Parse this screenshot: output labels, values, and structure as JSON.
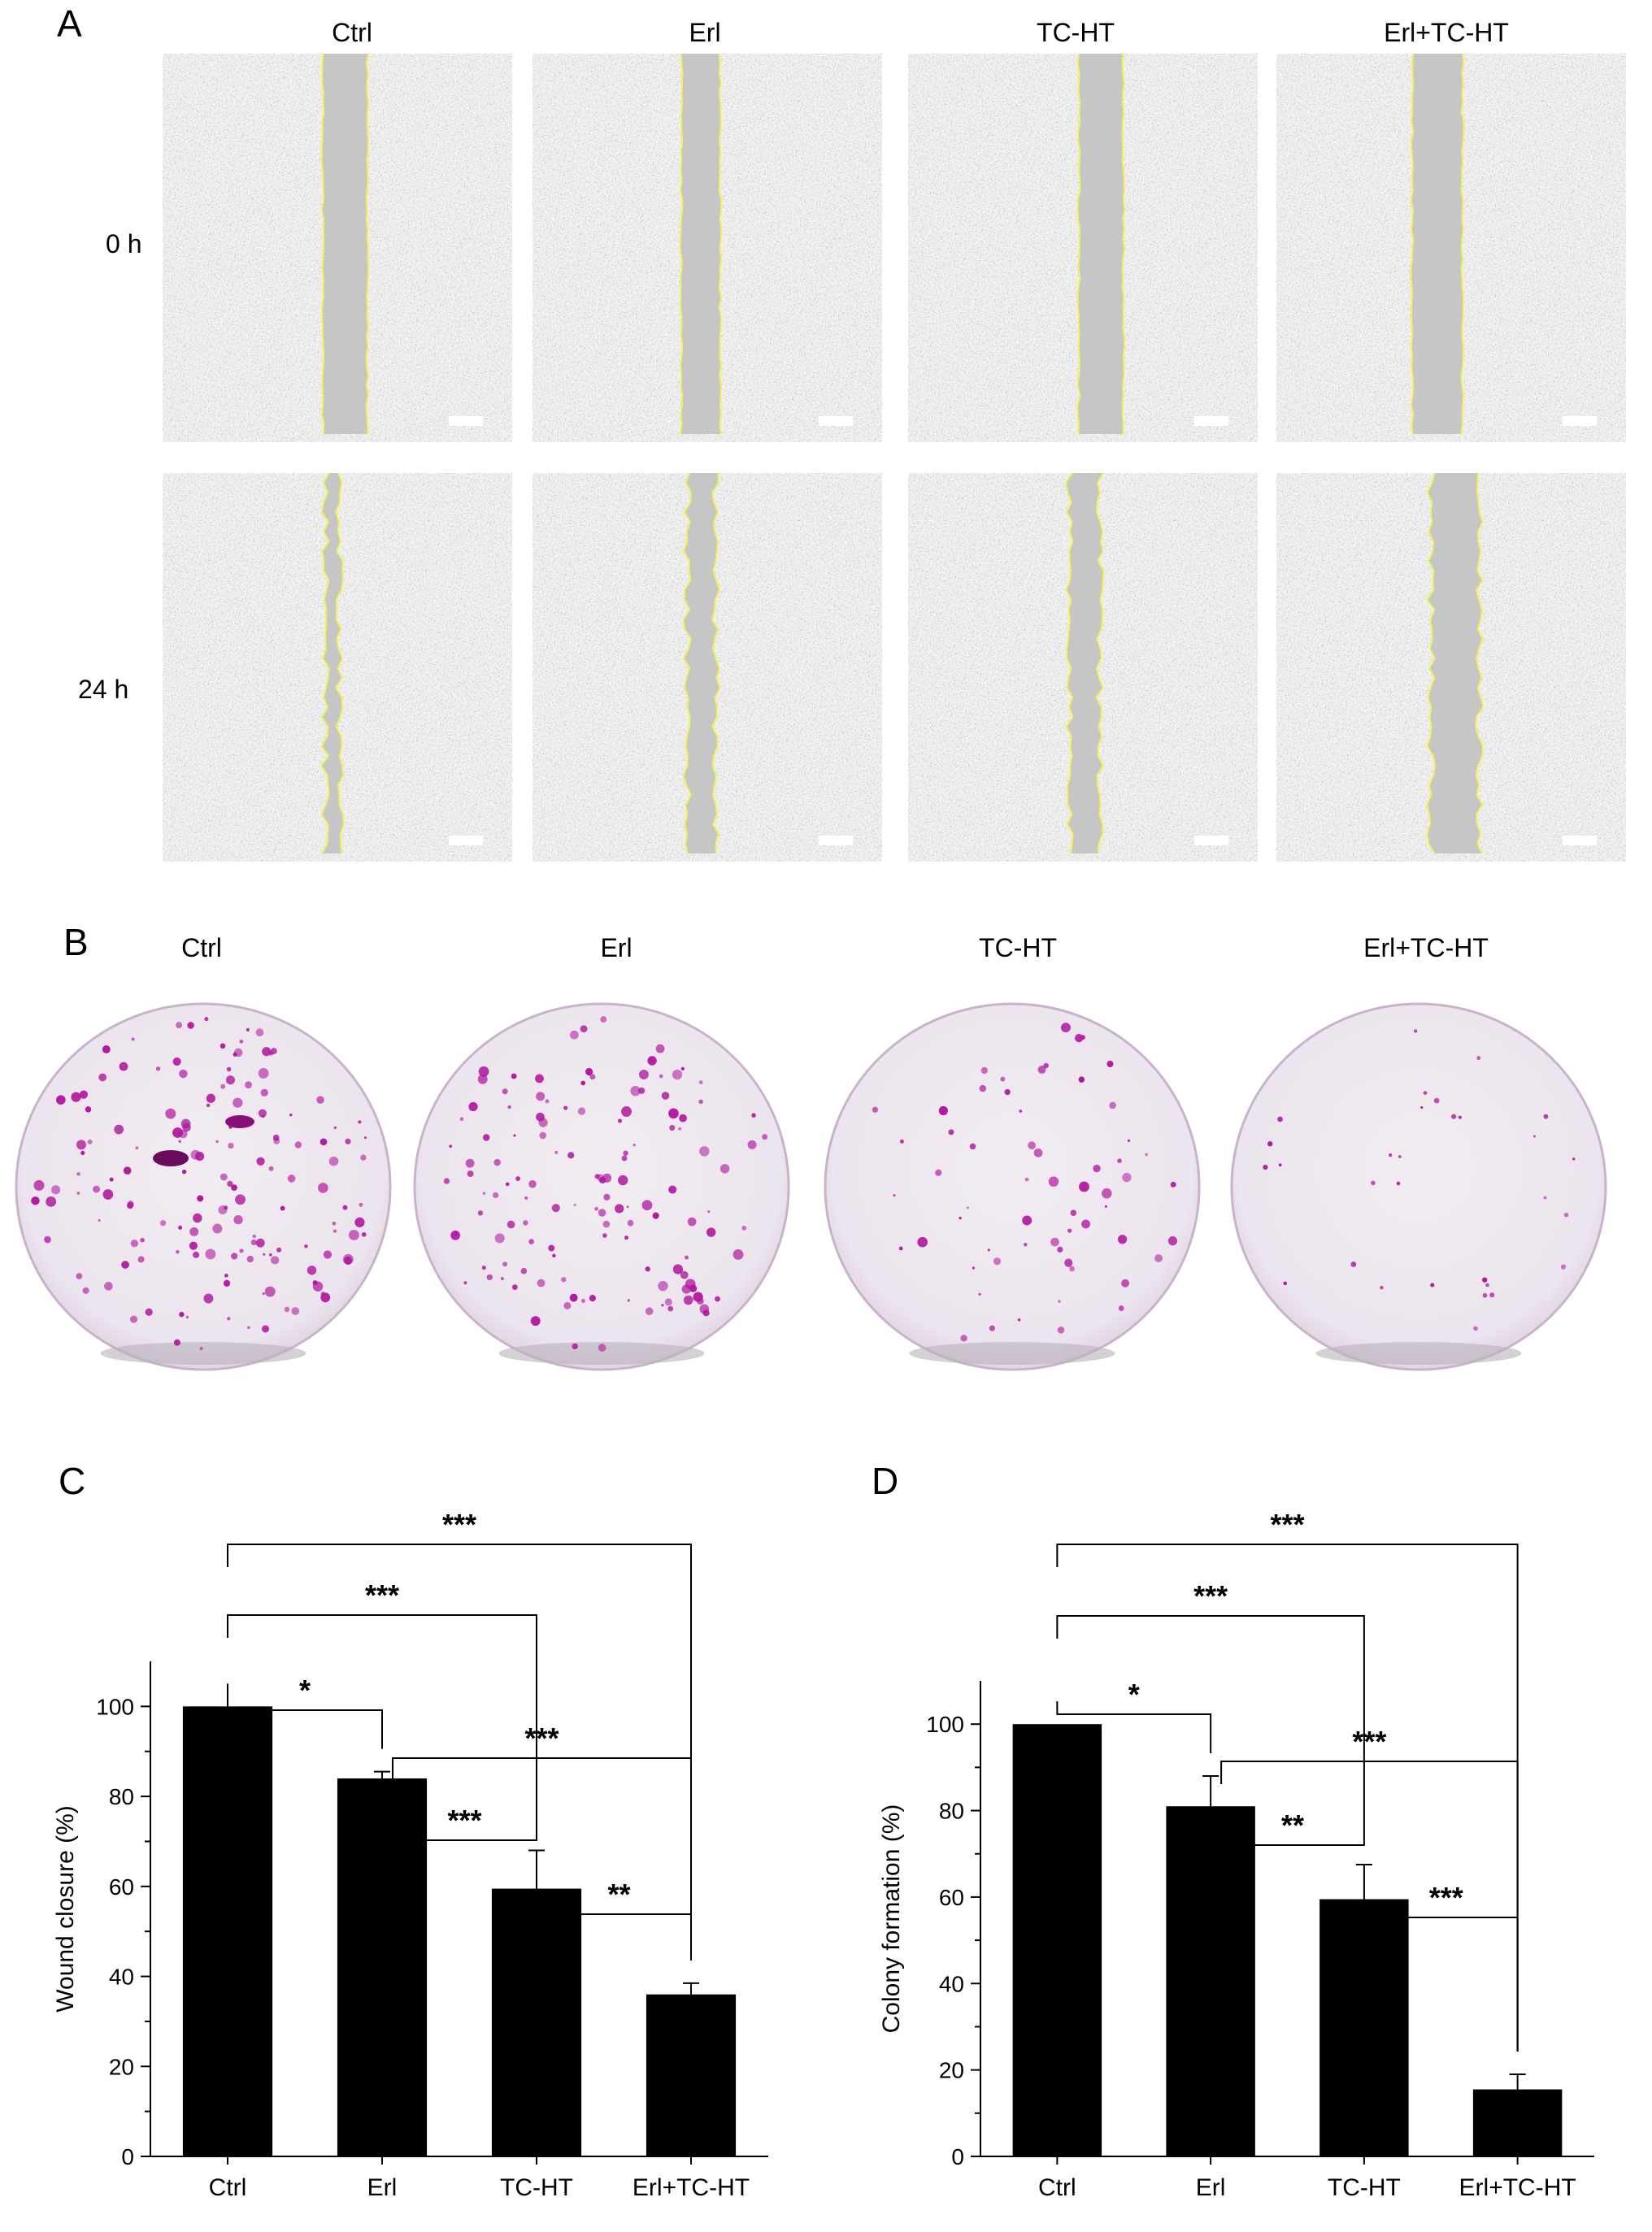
{
  "panel_letters": [
    "A",
    "B",
    "C",
    "D"
  ],
  "panel_a": {
    "columns": [
      "Ctrl",
      "Erl",
      "TC-HT",
      "Erl+TC-HT"
    ],
    "rows": [
      "0 h",
      "24 h"
    ]
  },
  "panel_b": {
    "columns": [
      "Ctrl",
      "Erl",
      "TC-HT",
      "Erl+TC-HT"
    ]
  },
  "colors": {
    "wound_outline": "#f2f25a",
    "colony_stain": "#b0189e",
    "bar_fill": "#000000",
    "dish_background": "#ece4ee"
  },
  "chart_data": [
    {
      "type": "bar",
      "panel": "C",
      "categories": [
        "Ctrl",
        "Erl",
        "TC-HT",
        "Erl+TC-HT"
      ],
      "values": [
        100,
        84,
        59.5,
        36
      ],
      "errors": [
        0,
        1.5,
        8.5,
        2.5
      ],
      "ylabel": "Wound closure (%)",
      "xlabel": "",
      "ylim": [
        0,
        110
      ],
      "yticks": [
        0,
        20,
        40,
        60,
        80,
        100
      ],
      "significance": [
        {
          "pair": [
            "Ctrl",
            "Erl+TC-HT"
          ],
          "label": "***"
        },
        {
          "pair": [
            "Ctrl",
            "TC-HT"
          ],
          "label": "***"
        },
        {
          "pair": [
            "Ctrl",
            "Erl"
          ],
          "label": "*"
        },
        {
          "pair": [
            "Erl",
            "Erl+TC-HT"
          ],
          "label": "***"
        },
        {
          "pair": [
            "Erl",
            "TC-HT"
          ],
          "label": "***"
        },
        {
          "pair": [
            "TC-HT",
            "Erl+TC-HT"
          ],
          "label": "**"
        }
      ]
    },
    {
      "type": "bar",
      "panel": "D",
      "categories": [
        "Ctrl",
        "Erl",
        "TC-HT",
        "Erl+TC-HT"
      ],
      "values": [
        100,
        81,
        59.5,
        15.5
      ],
      "errors": [
        0,
        7,
        8,
        3.5
      ],
      "ylabel": "Colony formation (%)",
      "xlabel": "",
      "ylim": [
        0,
        110
      ],
      "yticks": [
        0,
        20,
        40,
        60,
        80,
        100
      ],
      "significance": [
        {
          "pair": [
            "Ctrl",
            "Erl+TC-HT"
          ],
          "label": "***"
        },
        {
          "pair": [
            "Ctrl",
            "TC-HT"
          ],
          "label": "***"
        },
        {
          "pair": [
            "Ctrl",
            "Erl"
          ],
          "label": "*"
        },
        {
          "pair": [
            "Erl",
            "Erl+TC-HT"
          ],
          "label": "***"
        },
        {
          "pair": [
            "Erl",
            "TC-HT"
          ],
          "label": "**"
        },
        {
          "pair": [
            "TC-HT",
            "Erl+TC-HT"
          ],
          "label": "***"
        }
      ]
    }
  ]
}
